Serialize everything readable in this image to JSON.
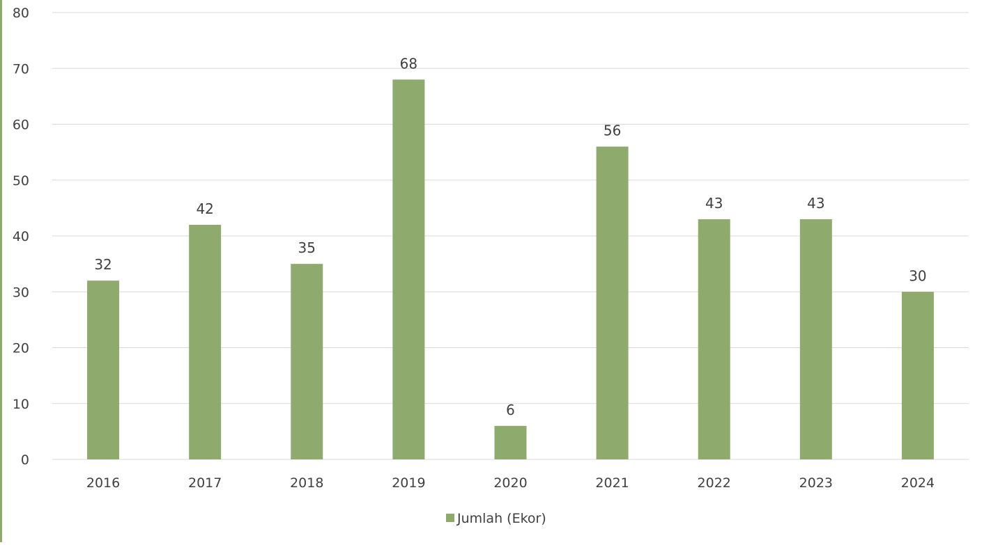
{
  "colors": {
    "bar": "#8faa6d",
    "grid": "#d9d9d9",
    "text": "#404040",
    "border": "#8faa6d"
  },
  "chart_data": {
    "type": "bar",
    "title": "",
    "xlabel": "",
    "ylabel": "",
    "categories": [
      "2016",
      "2017",
      "2018",
      "2019",
      "2020",
      "2021",
      "2022",
      "2023",
      "2024"
    ],
    "series": [
      {
        "name": "Jumlah (Ekor)",
        "values": [
          32,
          42,
          35,
          68,
          6,
          56,
          43,
          43,
          30
        ]
      }
    ],
    "ylim": [
      0,
      80
    ],
    "yticks": [
      "0",
      "10",
      "20",
      "30",
      "40",
      "50",
      "60",
      "70",
      "80"
    ],
    "grid": true,
    "legend": "bottom-center",
    "data_labels": true
  }
}
